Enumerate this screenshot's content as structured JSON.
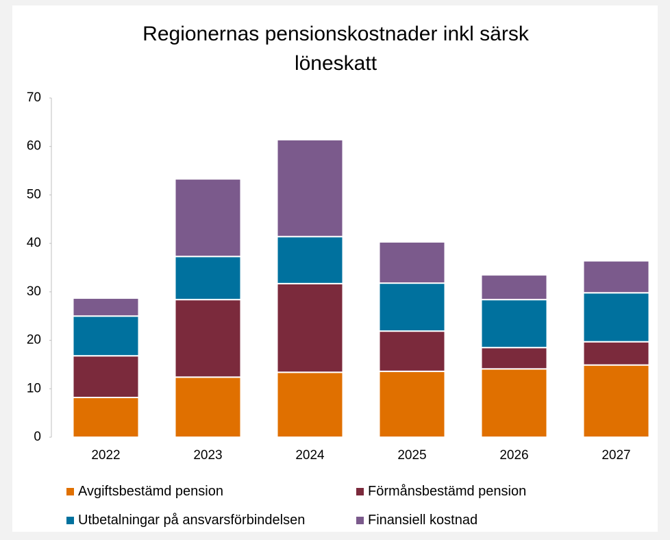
{
  "chart_data": {
    "type": "stacked_bar",
    "title": "Regionernas pensionskostnader inkl särsk löneskatt",
    "categories": [
      "2022",
      "2023",
      "2024",
      "2025",
      "2026",
      "2027"
    ],
    "series": [
      {
        "name": "Avgiftsbestämd pension",
        "color": "#e07000",
        "values": [
          8.2,
          12.4,
          13.4,
          13.6,
          14.1,
          14.9
        ]
      },
      {
        "name": "Förmånsbestämd pension",
        "color": "#7b2a3c",
        "values": [
          8.6,
          16.0,
          18.3,
          8.3,
          4.4,
          4.8
        ]
      },
      {
        "name": "Utbetalningar på ansvarsförbindelsen",
        "color": "#00719e",
        "values": [
          8.2,
          8.9,
          9.7,
          9.9,
          9.9,
          10.1
        ]
      },
      {
        "name": "Finansiell kostnad",
        "color": "#7b5a8c",
        "values": [
          3.7,
          16.0,
          20.0,
          8.5,
          5.1,
          6.6
        ]
      }
    ],
    "ylim": [
      0,
      70
    ],
    "yticks": [
      0,
      10,
      20,
      30,
      40,
      50,
      60,
      70
    ],
    "grid": false
  }
}
